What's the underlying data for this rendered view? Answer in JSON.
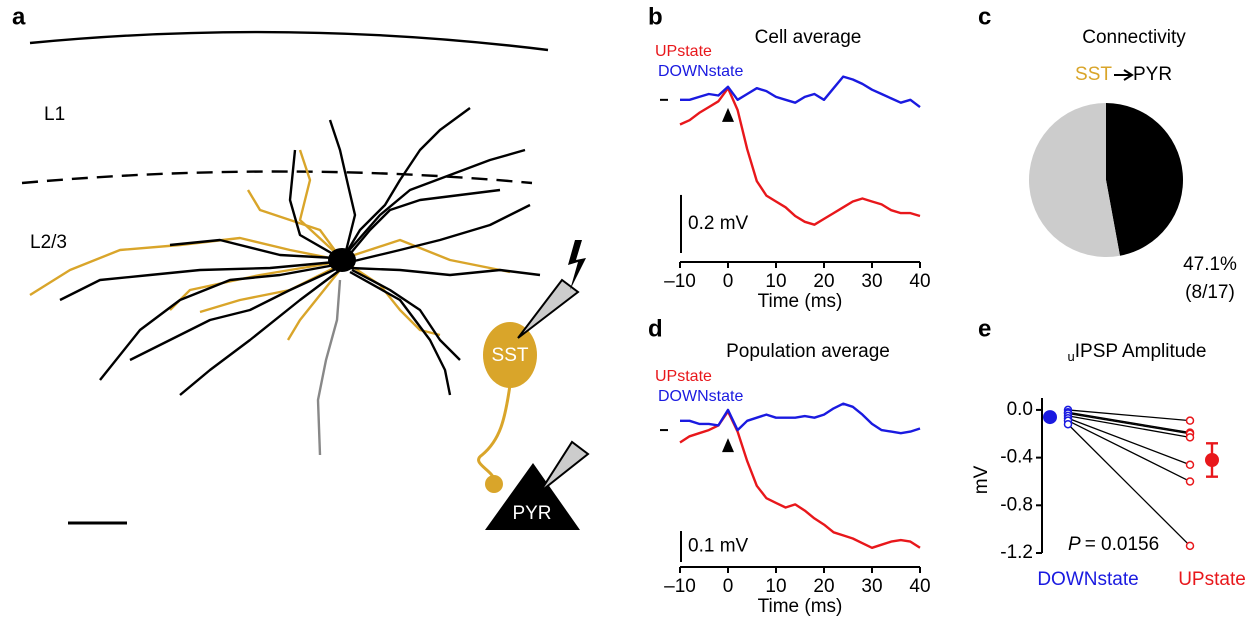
{
  "diagram": {
    "panel": "a",
    "layers": [
      "L1",
      "L2/3"
    ],
    "cells": [
      "SST",
      "PYR"
    ]
  },
  "chart_data": [
    {
      "type": "line",
      "panel": "b",
      "title": "Cell average",
      "xlabel": "Time (ms)",
      "x": [
        -10,
        -8,
        -6,
        -4,
        -2,
        0,
        2,
        4,
        6,
        8,
        10,
        12,
        14,
        16,
        18,
        20,
        22,
        24,
        26,
        28,
        30,
        32,
        34,
        36,
        38,
        40
      ],
      "xlim": [
        -10,
        40
      ],
      "xticks": [
        {
          "value": -10,
          "label": "–10"
        },
        0,
        10,
        20,
        30,
        40
      ],
      "ylim": [
        -0.5,
        0.12
      ],
      "scale_bar": {
        "value": 0.2,
        "label": "0.2 mV"
      },
      "series": [
        {
          "name": "UPstate",
          "color": "#e8171b",
          "values": [
            -0.085,
            -0.07,
            -0.045,
            -0.025,
            -0.005,
            0.04,
            -0.035,
            -0.17,
            -0.28,
            -0.33,
            -0.35,
            -0.37,
            -0.4,
            -0.42,
            -0.43,
            -0.41,
            -0.39,
            -0.37,
            -0.35,
            -0.34,
            -0.35,
            -0.36,
            -0.38,
            -0.39,
            -0.39,
            -0.4
          ]
        },
        {
          "name": "DOWNstate",
          "color": "#1a1ae0",
          "values": [
            0,
            0,
            0.01,
            0.02,
            0.015,
            0.045,
            0,
            0.02,
            0.04,
            0.03,
            0.01,
            0,
            -0.01,
            0.01,
            0.02,
            0,
            0.04,
            0.08,
            0.07,
            0.055,
            0.035,
            0.02,
            0.005,
            -0.01,
            0,
            -0.025
          ]
        }
      ]
    },
    {
      "type": "pie",
      "panel": "c",
      "title": "Connectivity",
      "source": "SST",
      "target": "PYR",
      "values": [
        47.1,
        52.9
      ],
      "colors": [
        "#000000",
        "#cccccc"
      ],
      "value_labels": [
        "47.1%",
        null
      ],
      "annotation": "(8/17)"
    },
    {
      "type": "line",
      "panel": "d",
      "title": "Population average",
      "xlabel": "Time (ms)",
      "x": [
        -10,
        -8,
        -6,
        -4,
        -2,
        0,
        2,
        4,
        6,
        8,
        10,
        12,
        14,
        16,
        18,
        20,
        22,
        24,
        26,
        28,
        30,
        32,
        34,
        36,
        38,
        40
      ],
      "xlim": [
        -10,
        40
      ],
      "xticks": [
        {
          "value": -10,
          "label": "–10"
        },
        0,
        10,
        20,
        30,
        40
      ],
      "ylim": [
        -0.4,
        0.11
      ],
      "scale_bar": {
        "value": 0.1,
        "label": "0.1 mV"
      },
      "series": [
        {
          "name": "UPstate",
          "color": "#e8171b",
          "values": [
            -0.04,
            -0.02,
            -0.01,
            0,
            0.015,
            0.06,
            -0.005,
            -0.1,
            -0.18,
            -0.22,
            -0.235,
            -0.25,
            -0.24,
            -0.26,
            -0.285,
            -0.305,
            -0.33,
            -0.34,
            -0.35,
            -0.365,
            -0.38,
            -0.37,
            -0.36,
            -0.355,
            -0.36,
            -0.38
          ]
        },
        {
          "name": "DOWNstate",
          "color": "#1a1ae0",
          "values": [
            0.03,
            0.03,
            0.02,
            0.02,
            0.015,
            0.065,
            0,
            0.03,
            0.04,
            0.05,
            0.04,
            0.04,
            0.04,
            0.045,
            0.04,
            0.05,
            0.07,
            0.085,
            0.075,
            0.05,
            0.02,
            0,
            -0.005,
            -0.01,
            -0.005,
            0.005
          ]
        }
      ]
    },
    {
      "type": "dot",
      "panel": "e",
      "title_subscript": "u",
      "title": "IPSP Amplitude",
      "ylabel": "mV",
      "categories": [
        "DOWNstate",
        "UPstate"
      ],
      "colors": [
        "#1a1ae0",
        "#e8171b"
      ],
      "ylim": [
        -1.2,
        0.1
      ],
      "yticks": [
        {
          "value": 0,
          "label": "0.0"
        },
        {
          "value": -0.4,
          "label": "-0.4"
        },
        {
          "value": -0.8,
          "label": "-0.8"
        },
        {
          "value": -1.2,
          "label": "-1.2"
        }
      ],
      "groups": [
        {
          "values": [
            0,
            -0.02,
            -0.03,
            -0.05,
            -0.07,
            -0.09,
            -0.12
          ],
          "mean": -0.06
        },
        {
          "values": [
            -0.09,
            -0.19,
            -0.2,
            -0.23,
            -0.46,
            -0.6,
            -1.14
          ],
          "mean": -0.42,
          "error": 0.14
        }
      ],
      "stat_symbol": "P",
      "stat_text": "= 0.0156"
    }
  ]
}
